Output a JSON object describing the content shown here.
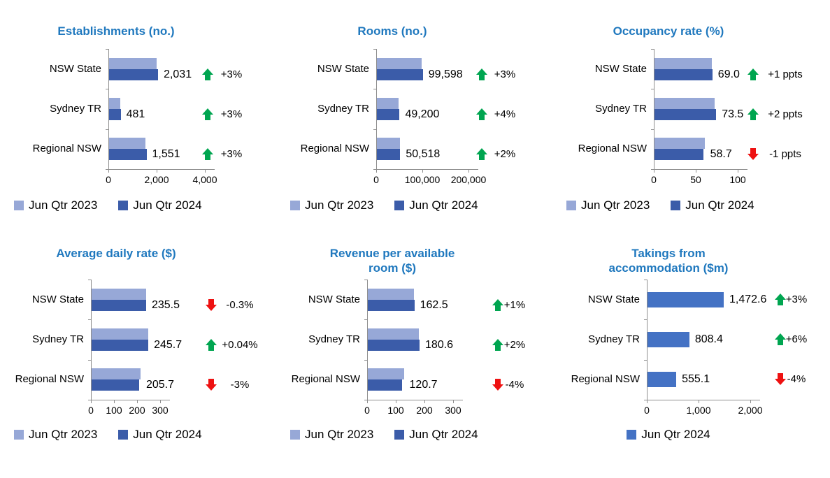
{
  "colors": {
    "title": "#1F78BE",
    "bar_2023": "#97A8D7",
    "bar_2024": "#3B5CA9",
    "bar_single": "#4472C4",
    "positive": "#00A550",
    "negative": "#EE1111",
    "axis": "#8E8E8E",
    "text": "#000000",
    "background": "#FFFFFF"
  },
  "chart_data": [
    {
      "type": "bar",
      "orientation": "horizontal",
      "title": "Establishments (no.)",
      "categories": [
        "NSW State",
        "Sydney TR",
        "Regional NSW"
      ],
      "series": [
        {
          "name": "Jun Qtr 2023",
          "estimated": true,
          "values": [
            1972,
            467,
            1506
          ]
        },
        {
          "name": "Jun Qtr 2024",
          "values": [
            2031,
            481,
            1551
          ]
        }
      ],
      "value_labels": [
        "2,031",
        "481",
        "1,551"
      ],
      "changes": [
        {
          "direction": "up",
          "label": "+3%"
        },
        {
          "direction": "up",
          "label": "+3%"
        },
        {
          "direction": "up",
          "label": "+3%"
        }
      ],
      "x_ticks": [
        "0",
        "2,000",
        "4,000"
      ],
      "axis_max": 4000,
      "grid": false,
      "legend": [
        "Jun Qtr 2023",
        "Jun Qtr 2024"
      ],
      "legend_position": "bottom-left"
    },
    {
      "type": "bar",
      "orientation": "horizontal",
      "title": "Rooms (no.)",
      "categories": [
        "NSW State",
        "Sydney TR",
        "Regional NSW"
      ],
      "series": [
        {
          "name": "Jun Qtr 2023",
          "estimated": true,
          "values": [
            96700,
            47300,
            49530
          ]
        },
        {
          "name": "Jun Qtr 2024",
          "values": [
            99598,
            49200,
            50518
          ]
        }
      ],
      "value_labels": [
        "99,598",
        "49,200",
        "50,518"
      ],
      "changes": [
        {
          "direction": "up",
          "label": "+3%"
        },
        {
          "direction": "up",
          "label": "+4%"
        },
        {
          "direction": "up",
          "label": "+2%"
        }
      ],
      "x_ticks": [
        "0",
        "100,000",
        "200,000"
      ],
      "axis_max": 200000,
      "grid": false,
      "legend": [
        "Jun Qtr 2023",
        "Jun Qtr 2024"
      ],
      "legend_position": "bottom-left"
    },
    {
      "type": "bar",
      "orientation": "horizontal",
      "title": "Occupancy rate (%)",
      "categories": [
        "NSW State",
        "Sydney TR",
        "Regional NSW"
      ],
      "series": [
        {
          "name": "Jun Qtr 2023",
          "estimated": true,
          "values": [
            68.0,
            71.5,
            59.7
          ]
        },
        {
          "name": "Jun Qtr 2024",
          "values": [
            69.0,
            73.5,
            58.7
          ]
        }
      ],
      "value_labels": [
        "69.0",
        "73.5",
        "58.7"
      ],
      "changes": [
        {
          "direction": "up",
          "label": "+1 ppts"
        },
        {
          "direction": "up",
          "label": "+2 ppts"
        },
        {
          "direction": "down",
          "label": "-1 ppts"
        }
      ],
      "x_ticks": [
        "0",
        "50",
        "100"
      ],
      "axis_max": 100,
      "grid": false,
      "legend": [
        "Jun Qtr 2023",
        "Jun Qtr 2024"
      ],
      "legend_position": "bottom-left"
    },
    {
      "type": "bar",
      "orientation": "horizontal",
      "title": "Average daily rate ($)",
      "categories": [
        "NSW State",
        "Sydney TR",
        "Regional NSW"
      ],
      "series": [
        {
          "name": "Jun Qtr 2023",
          "estimated": true,
          "values": [
            236.2,
            245.6,
            212.1
          ]
        },
        {
          "name": "Jun Qtr 2024",
          "values": [
            235.5,
            245.7,
            205.7
          ]
        }
      ],
      "value_labels": [
        "235.5",
        "245.7",
        "205.7"
      ],
      "changes": [
        {
          "direction": "down",
          "label": "-0.3%"
        },
        {
          "direction": "up",
          "label": "+0.04%"
        },
        {
          "direction": "down",
          "label": "-3%"
        }
      ],
      "x_ticks": [
        "0",
        "100",
        "200",
        "300"
      ],
      "axis_max": 300,
      "grid": false,
      "legend": [
        "Jun Qtr 2023",
        "Jun Qtr 2024"
      ],
      "legend_position": "bottom-left"
    },
    {
      "type": "bar",
      "orientation": "horizontal",
      "title": "Revenue per available\nroom ($)",
      "categories": [
        "NSW State",
        "Sydney TR",
        "Regional NSW"
      ],
      "series": [
        {
          "name": "Jun Qtr 2023",
          "estimated": true,
          "values": [
            160.9,
            177.1,
            125.7
          ]
        },
        {
          "name": "Jun Qtr 2024",
          "values": [
            162.5,
            180.6,
            120.7
          ]
        }
      ],
      "value_labels": [
        "162.5",
        "180.6",
        "120.7"
      ],
      "changes": [
        {
          "direction": "up",
          "label": "+1%"
        },
        {
          "direction": "up",
          "label": "+2%"
        },
        {
          "direction": "down",
          "label": "-4%"
        }
      ],
      "x_ticks": [
        "0",
        "100",
        "200",
        "300"
      ],
      "axis_max": 300,
      "grid": false,
      "legend": [
        "Jun Qtr 2023",
        "Jun Qtr 2024"
      ],
      "legend_position": "bottom-left"
    },
    {
      "type": "bar",
      "orientation": "horizontal",
      "title": "Takings from\naccommodation ($m)",
      "categories": [
        "NSW State",
        "Sydney TR",
        "Regional NSW"
      ],
      "series": [
        {
          "name": "Jun Qtr 2024",
          "values": [
            1472.6,
            808.4,
            555.1
          ]
        }
      ],
      "value_labels": [
        "1,472.6",
        "808.4",
        "555.1"
      ],
      "changes": [
        {
          "direction": "up",
          "label": "+3%"
        },
        {
          "direction": "up",
          "label": "+6%"
        },
        {
          "direction": "down",
          "label": "-4%"
        }
      ],
      "x_ticks": [
        "0",
        "1,000",
        "2,000"
      ],
      "axis_max": 2000,
      "grid": false,
      "legend": [
        "Jun Qtr 2024"
      ],
      "legend_position": "bottom-center"
    }
  ]
}
